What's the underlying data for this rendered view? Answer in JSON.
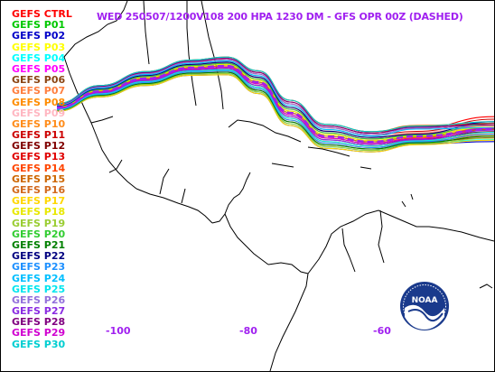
{
  "title": "WED 250507/1200V108  200 HPA 1230 DM - GFS OPR 00Z (DASHED)",
  "legend": [
    {
      "label": "GEFS CTRL",
      "color": "#ff0000"
    },
    {
      "label": "GEFS P01",
      "color": "#00c800"
    },
    {
      "label": "GEFS P02",
      "color": "#0000c8"
    },
    {
      "label": "GEFS P03",
      "color": "#ffff00"
    },
    {
      "label": "GEFS P04",
      "color": "#00ffff"
    },
    {
      "label": "GEFS P05",
      "color": "#ff00ff"
    },
    {
      "label": "GEFS P06",
      "color": "#8b4513"
    },
    {
      "label": "GEFS P07",
      "color": "#ff7f3f"
    },
    {
      "label": "GEFS P08",
      "color": "#ff8c00"
    },
    {
      "label": "GEFS P09",
      "color": "#ffb6c1"
    },
    {
      "label": "GEFS P10",
      "color": "#ff8c1a"
    },
    {
      "label": "GEFS P11",
      "color": "#cc0000"
    },
    {
      "label": "GEFS P12",
      "color": "#800000"
    },
    {
      "label": "GEFS P13",
      "color": "#e00000"
    },
    {
      "label": "GEFS P14",
      "color": "#ff4500"
    },
    {
      "label": "GEFS P15",
      "color": "#cd6600"
    },
    {
      "label": "GEFS P16",
      "color": "#d2691e"
    },
    {
      "label": "GEFS P17",
      "color": "#ffd700"
    },
    {
      "label": "GEFS P18",
      "color": "#e8e800"
    },
    {
      "label": "GEFS P19",
      "color": "#9acd32"
    },
    {
      "label": "GEFS P20",
      "color": "#32cd32"
    },
    {
      "label": "GEFS P21",
      "color": "#008000"
    },
    {
      "label": "GEFS P22",
      "color": "#000080"
    },
    {
      "label": "GEFS P23",
      "color": "#1e90ff"
    },
    {
      "label": "GEFS P24",
      "color": "#00bfff"
    },
    {
      "label": "GEFS P25",
      "color": "#00e5ee"
    },
    {
      "label": "GEFS P26",
      "color": "#9370db"
    },
    {
      "label": "GEFS P27",
      "color": "#8a2be2"
    },
    {
      "label": "GEFS P28",
      "color": "#800080"
    },
    {
      "label": "GEFS P29",
      "color": "#d000d0"
    },
    {
      "label": "GEFS P30",
      "color": "#00ced1"
    }
  ],
  "longitude_labels": [
    "-100",
    "-80",
    "-60"
  ],
  "opr_color": "#a020f0",
  "logo_text": "NOAA"
}
